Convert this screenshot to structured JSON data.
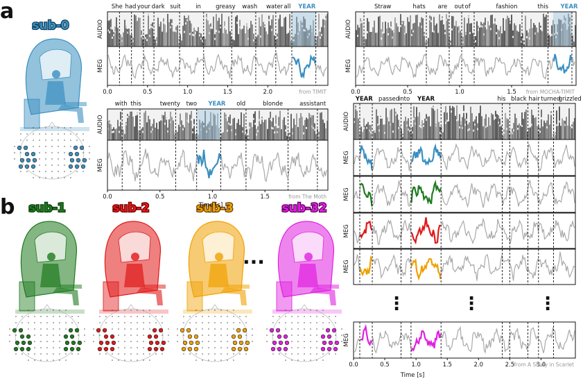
{
  "colors": {
    "sub0": "#3a8fc0",
    "sub1": "#1e7a1e",
    "sub2": "#e01818",
    "sub3": "#f0a000",
    "sub32": "#e020e0",
    "meg_gray": "#a8a8a8",
    "highlight": "#9fc8e0",
    "spectrogram": "#7a7a7a"
  },
  "panel_a": {
    "letter": "a",
    "subject": "sub-0",
    "plots": [
      {
        "id": "timit",
        "words": [
          "She",
          "had",
          "your",
          "dark",
          "suit",
          "in",
          "greasy",
          "wash",
          "water",
          "all",
          "YEAR"
        ],
        "word_times": [
          0.05,
          0.22,
          0.37,
          0.55,
          0.78,
          1.1,
          1.35,
          1.68,
          1.98,
          2.2,
          2.38
        ],
        "word_bounds": [
          0.15,
          0.3,
          0.45,
          0.58,
          0.9,
          1.2,
          1.55,
          1.85,
          2.1,
          2.3,
          2.6
        ],
        "highlight": [
          2.3,
          2.6
        ],
        "xticks": [
          "0.0",
          "0.5",
          "1.0",
          "1.5",
          "2.0"
        ],
        "xtick_vals": [
          0,
          0.5,
          1,
          1.5,
          2
        ],
        "xmax": 2.75,
        "source": "from TIMIT"
      },
      {
        "id": "mocha",
        "words": [
          "Straw",
          "hats",
          "are",
          "out",
          "of",
          "fashion",
          "this",
          "YEAR"
        ],
        "word_times": [
          0.18,
          0.55,
          0.79,
          0.95,
          1.05,
          1.35,
          1.75,
          1.97
        ],
        "word_bounds": [
          0.08,
          0.68,
          0.9,
          1.02,
          1.14,
          1.6,
          1.85,
          2.08
        ],
        "highlight": [
          1.9,
          2.08
        ],
        "xticks": [
          "0.0",
          "0.5",
          "1.0",
          "1.5"
        ],
        "xtick_vals": [
          0,
          0.5,
          1,
          1.5
        ],
        "xmax": 2.12,
        "source": "from MOCHA-TIMIT"
      },
      {
        "id": "moth",
        "words": [
          "with",
          "this",
          "twenty",
          "two",
          "YEAR",
          "old",
          "blonde",
          "assistant"
        ],
        "word_times": [
          0.07,
          0.22,
          0.5,
          0.75,
          0.96,
          1.23,
          1.48,
          1.83
        ],
        "word_bounds": [
          0.14,
          0.31,
          0.65,
          0.85,
          1.08,
          1.32,
          1.72,
          2.0
        ],
        "highlight": [
          0.85,
          1.08
        ],
        "xticks": [
          "0.0",
          "0.5",
          "1.0",
          "1.5"
        ],
        "xtick_vals": [
          0,
          0.5,
          1,
          1.5
        ],
        "xmax": 2.1,
        "source": "from The Moth",
        "xlabel": "Time [s]"
      }
    ]
  },
  "panel_b": {
    "letter": "b",
    "subjects": [
      "sub-1",
      "sub-2",
      "sub-3",
      "sub-32"
    ],
    "ellipsis": "...",
    "scarlet": {
      "words": [
        "YEAR",
        "passed",
        "into",
        "YEAR",
        "his",
        "black",
        "hair",
        "turned",
        "grizzled"
      ],
      "word_times": [
        0.03,
        0.4,
        0.72,
        1.02,
        2.3,
        2.52,
        2.8,
        3.0,
        3.28
      ],
      "word_bounds": [
        0.1,
        0.3,
        0.76,
        0.92,
        1.4,
        2.38,
        2.5,
        2.79,
        2.96,
        3.2
      ],
      "highlights": [
        [
          0.1,
          0.3
        ],
        [
          0.92,
          1.4
        ]
      ],
      "xticks": [
        "0.0",
        "0.5",
        "1.0",
        "1.5",
        "2.0",
        "2.5",
        "3.0"
      ],
      "xtick_vals": [
        0,
        0.5,
        1,
        1.5,
        2,
        2.5,
        3
      ],
      "xmax": 3.55,
      "source": "from A Study in Scarlet",
      "xlabel": "Time [s]",
      "vdots": "⋮"
    }
  },
  "labels": {
    "audio": "AUDIO",
    "meg": "MEG"
  }
}
